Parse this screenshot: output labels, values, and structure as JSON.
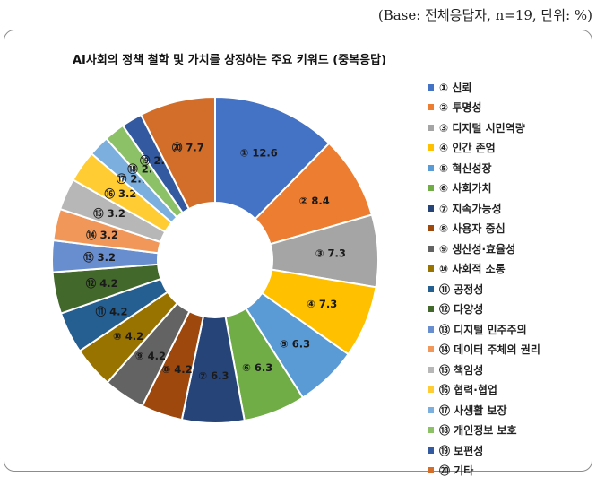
{
  "base_note": "(Base: 전체응답자, n=19, 단위: %)",
  "chart_data": {
    "type": "donut",
    "title": "AI사회의 정책 철학 및 가치를 상징하는 주요 키워드 (중복응답)",
    "legend_position": "right",
    "categories": [
      "① 신뢰",
      "② 투명성",
      "③ 디지털 시민역량",
      "④ 인간 존엄",
      "⑤ 혁신성장",
      "⑥ 사회가치",
      "⑦ 지속가능성",
      "⑧ 사용자 중심",
      "⑨ 생산성·효율성",
      "⑩ 사회적 소통",
      "⑪ 공정성",
      "⑫ 다양성",
      "⑬ 디지털 민주주의",
      "⑭ 데이터 주체의 권리",
      "⑮ 책임성",
      "⑯ 협력·협업",
      "⑰ 사생활 보장",
      "⑱ 개인정보 보호",
      "⑲ 보편성",
      "⑳ 기타"
    ],
    "values": [
      12.6,
      8.4,
      7.3,
      7.3,
      6.3,
      6.3,
      6.3,
      4.2,
      4.2,
      4.2,
      4.2,
      4.2,
      3.2,
      3.2,
      3.2,
      3.2,
      2.1,
      2.1,
      2.1,
      7.7
    ],
    "data_labels": [
      "① 12.6",
      "② 8.4",
      "③ 7.3",
      "④ 7.3",
      "⑤ 6.3",
      "⑥ 6.3",
      "⑦ 6.3",
      "⑧ 4.2",
      "⑨ 4.2",
      "⑩ 4.2",
      "⑪ 4.2",
      "⑫ 4.2",
      "⑬ 3.2",
      "⑭ 3.2",
      "⑮ 3.2",
      "⑯ 3.2",
      "⑰ 2.1",
      "⑱ 2.1",
      "⑲ 2.1",
      "⑳ 7.7"
    ],
    "colors": [
      "#4472C4",
      "#ED7D31",
      "#A5A5A5",
      "#FFC000",
      "#5B9BD5",
      "#70AD47",
      "#264478",
      "#9E480E",
      "#636363",
      "#997300",
      "#255E91",
      "#43682B",
      "#698ED0",
      "#F1975A",
      "#B7B7B7",
      "#FFCD33",
      "#7CAFDD",
      "#8CC168",
      "#335AA1",
      "#D26E2A"
    ]
  }
}
